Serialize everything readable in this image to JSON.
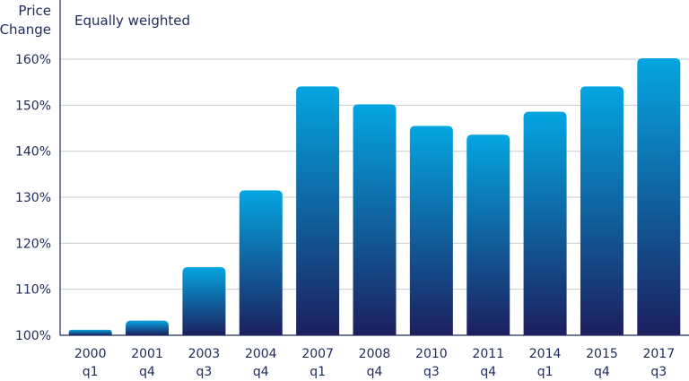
{
  "chart_data": {
    "type": "bar",
    "ylabel_lines": [
      "Price",
      "Change"
    ],
    "subtitle": "Equally weighted",
    "ylim": [
      100,
      168
    ],
    "yticks": [
      100,
      110,
      120,
      130,
      140,
      150,
      160
    ],
    "ytick_suffix": "%",
    "grid": true,
    "categories": [
      [
        "2000",
        "q1"
      ],
      [
        "2001",
        "q4"
      ],
      [
        "2003",
        "q3"
      ],
      [
        "2004",
        "q4"
      ],
      [
        "2007",
        "q1"
      ],
      [
        "2008",
        "q4"
      ],
      [
        "2010",
        "q3"
      ],
      [
        "2011",
        "q4"
      ],
      [
        "2014",
        "q1"
      ],
      [
        "2015",
        "q4"
      ],
      [
        "2017",
        "q3"
      ]
    ],
    "values": [
      101.2,
      103.2,
      114.8,
      131.5,
      154.1,
      150.2,
      145.5,
      143.6,
      148.6,
      154.1,
      160.2
    ],
    "colors": {
      "bar_top": "#04a6e1",
      "bar_bottom": "#1c1f5e",
      "grid": "#c7cbd6",
      "axis": "#1f2a5c"
    }
  }
}
